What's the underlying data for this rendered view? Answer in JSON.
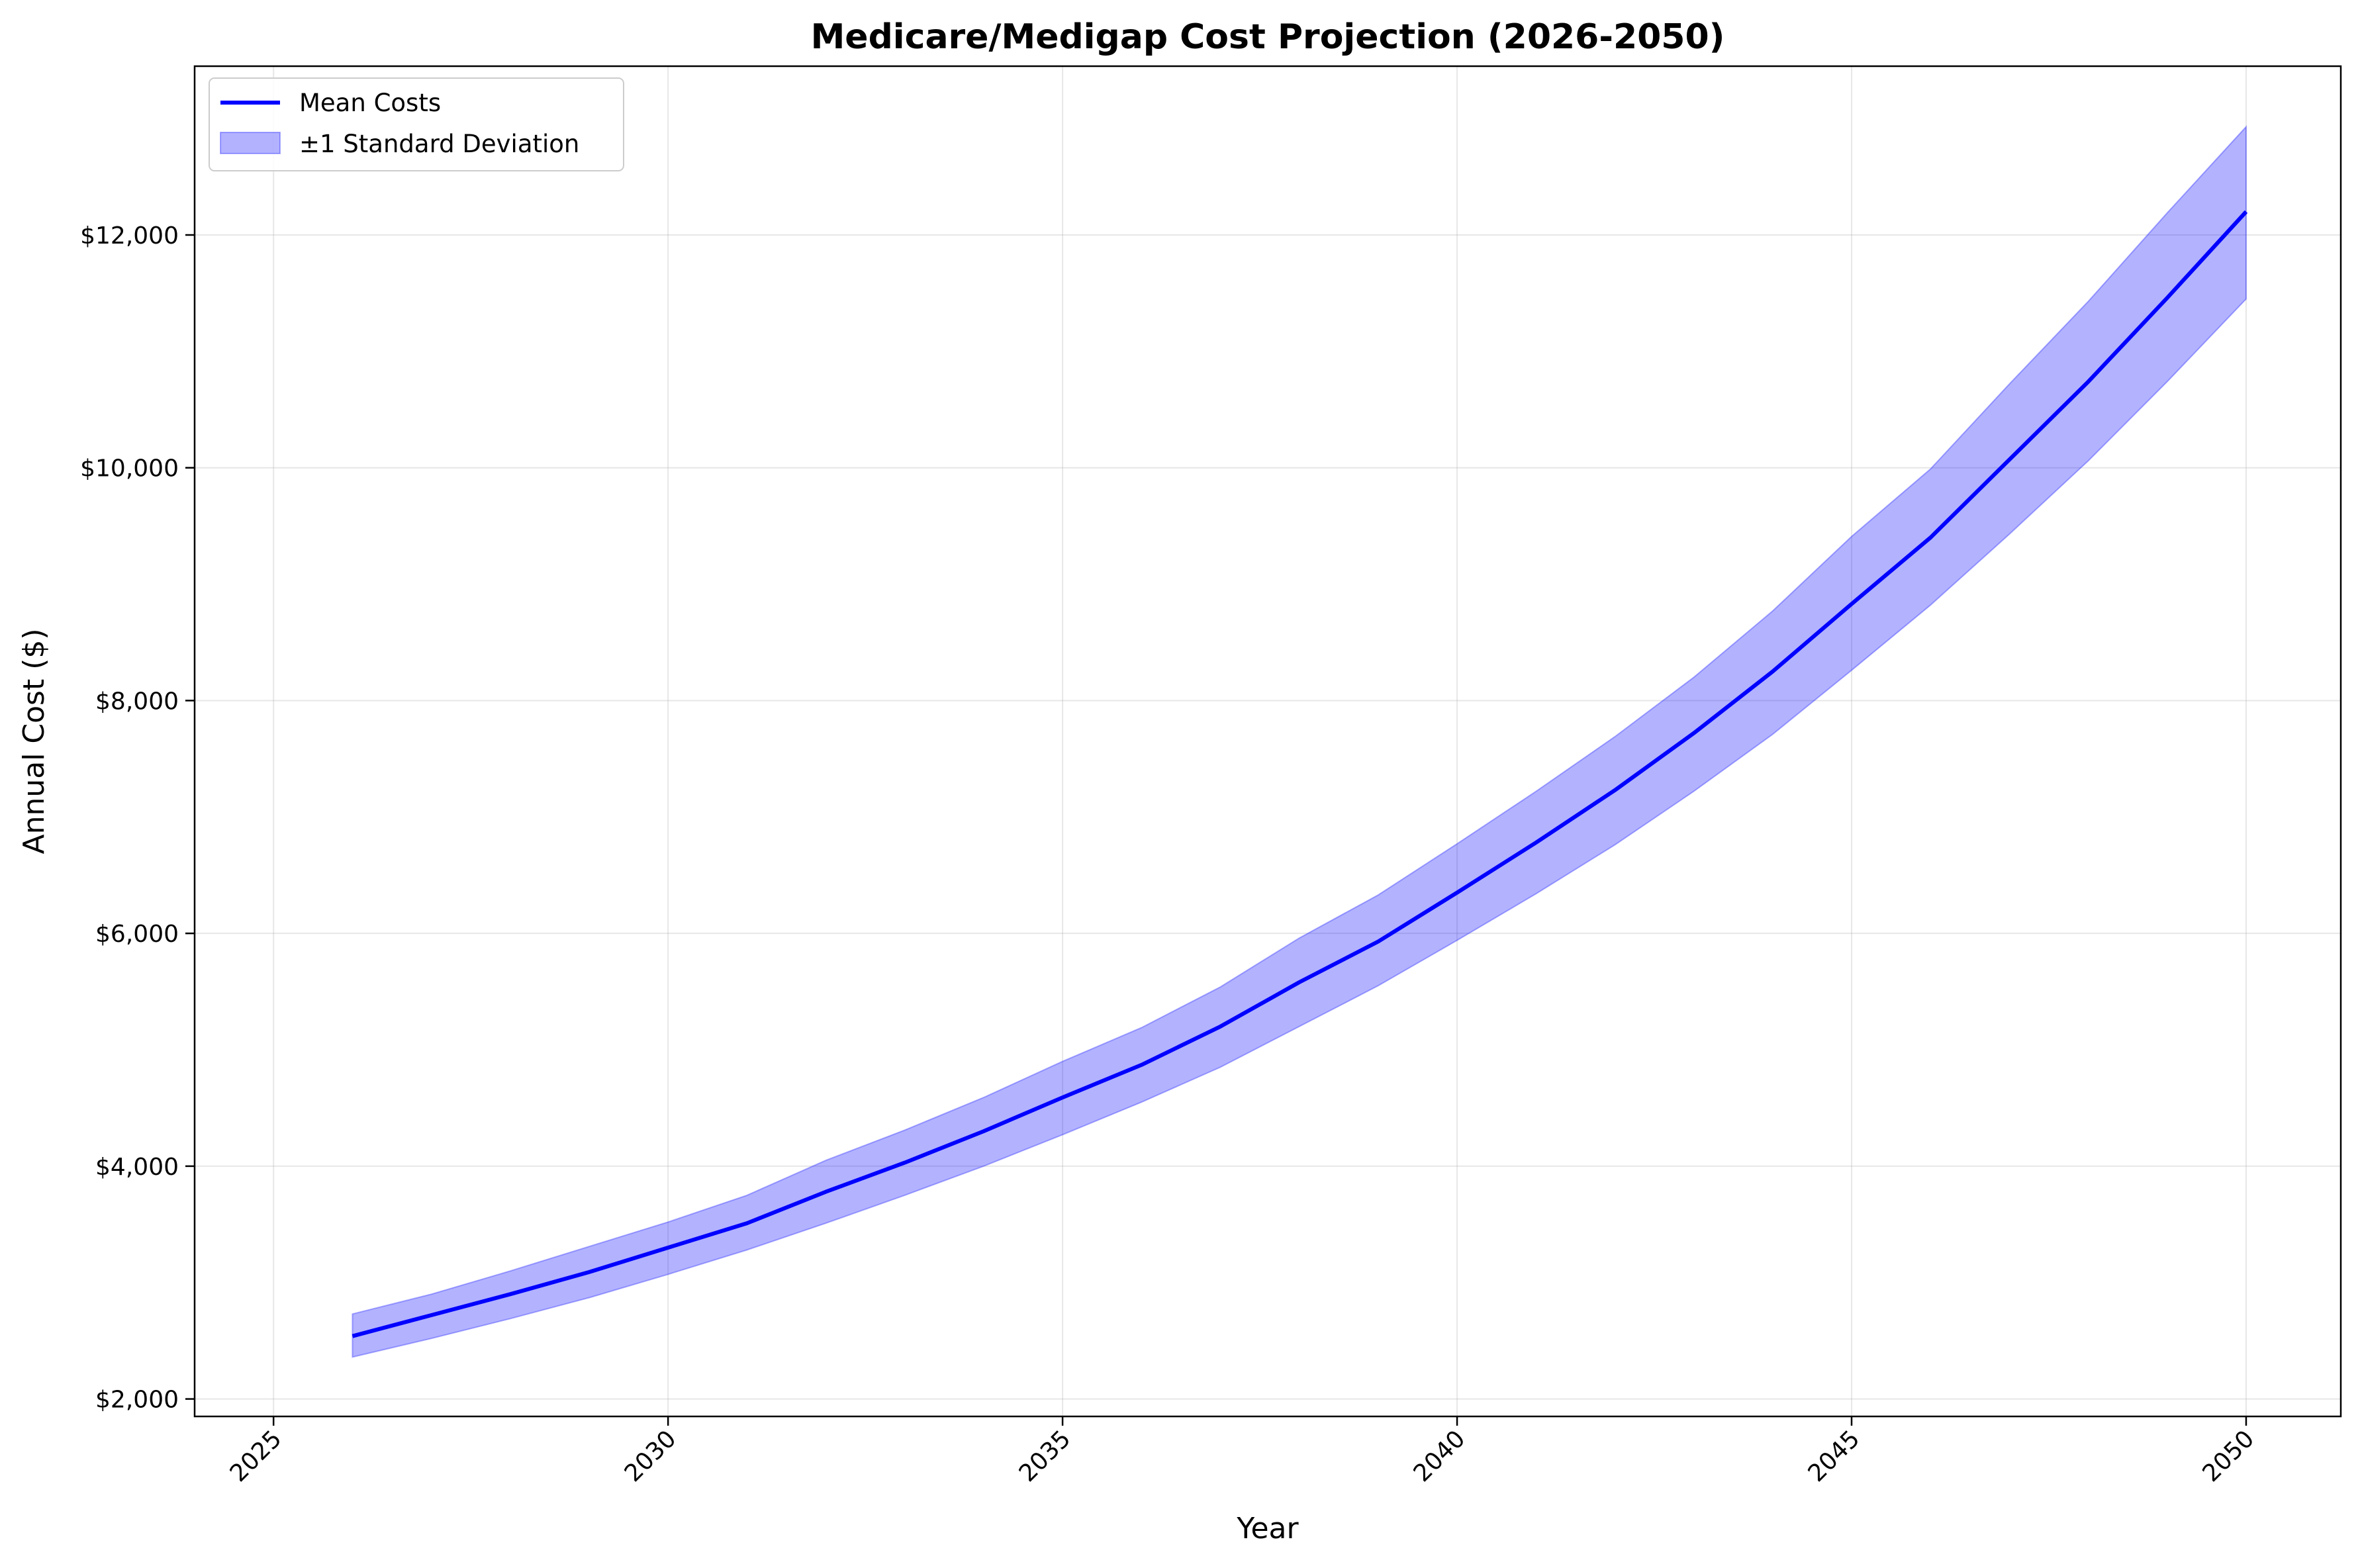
{
  "chart_data": {
    "type": "line",
    "title": "Medicare/Medigap Cost Projection (2026-2050)",
    "xlabel": "Year",
    "ylabel": "Annual Cost ($)",
    "xlim": [
      2024.0,
      2051.2
    ],
    "ylim": [
      1850,
      13450
    ],
    "x_ticks": [
      2025,
      2030,
      2035,
      2040,
      2045,
      2050
    ],
    "x_tick_labels": [
      "2025",
      "2030",
      "2035",
      "2040",
      "2045",
      "2050"
    ],
    "y_ticks": [
      2000,
      4000,
      6000,
      8000,
      10000,
      12000
    ],
    "y_tick_labels": [
      "$2,000",
      "$4,000",
      "$6,000",
      "$8,000",
      "$10,000",
      "$12,000"
    ],
    "grid": true,
    "legend_position": "top-left",
    "x": [
      2026,
      2027,
      2028,
      2029,
      2030,
      2031,
      2032,
      2033,
      2034,
      2035,
      2036,
      2037,
      2038,
      2039,
      2040,
      2041,
      2042,
      2043,
      2044,
      2045,
      2046,
      2047,
      2048,
      2049,
      2050
    ],
    "series": [
      {
        "name": "Mean Costs",
        "kind": "line",
        "color": "#0000ff",
        "values": [
          2540,
          2720,
          2900,
          3090,
          3300,
          3510,
          3780,
          4030,
          4300,
          4590,
          4870,
          5200,
          5580,
          5930,
          6350,
          6780,
          7230,
          7720,
          8250,
          8830,
          9400,
          10070,
          10740,
          11460,
          12200
        ]
      },
      {
        "name": "±1 Standard Deviation",
        "kind": "band",
        "color": "#0000ff",
        "lower": [
          2360,
          2520,
          2690,
          2870,
          3070,
          3280,
          3510,
          3750,
          4000,
          4270,
          4550,
          4850,
          5200,
          5550,
          5940,
          6340,
          6760,
          7220,
          7710,
          8260,
          8820,
          9430,
          10060,
          10740,
          11450
        ],
        "upper": [
          2730,
          2900,
          3100,
          3310,
          3520,
          3750,
          4050,
          4310,
          4590,
          4900,
          5190,
          5540,
          5960,
          6330,
          6770,
          7220,
          7690,
          8200,
          8770,
          9410,
          9990,
          10720,
          11430,
          12190,
          12930
        ]
      }
    ]
  }
}
